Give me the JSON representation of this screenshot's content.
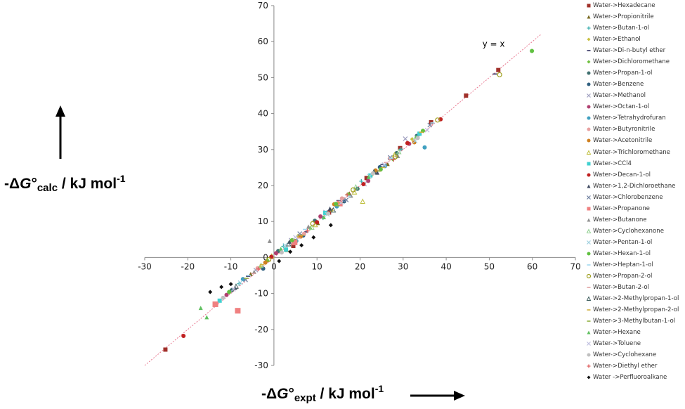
{
  "chart_data": {
    "type": "scatter",
    "xlim": [
      -30,
      70
    ],
    "ylim": [
      -30,
      70
    ],
    "x_ticks": [
      "-30",
      "-20",
      "-10",
      "0",
      "10",
      "20",
      "30",
      "40",
      "50",
      "60",
      "70"
    ],
    "y_ticks": [
      "-30",
      "-20",
      "-10",
      "0",
      "10",
      "20",
      "30",
      "40",
      "50",
      "60",
      "70"
    ],
    "grid": false,
    "legend_position": "right",
    "reference_line": {
      "label": "y = x",
      "color": "#e87890"
    },
    "xlabel": {
      "prefix": "-Δ",
      "symbol": "G",
      "degree": "°",
      "sub": "expt",
      "rest": " / kJ mol",
      "sup": "-1"
    },
    "ylabel": {
      "prefix": "-Δ",
      "symbol": "G",
      "degree": "°",
      "sub": "calc",
      "rest": " / kJ mol",
      "sup": "-1"
    },
    "series": [
      {
        "name": "Water->Hexadecane",
        "marker": "square",
        "color": "#a0302a",
        "x": [
          -25.2,
          4.5,
          12.8,
          21.5,
          29.3,
          36.5,
          44.6,
          52.1
        ],
        "y": [
          -25.6,
          3.2,
          12.5,
          22.1,
          30.4,
          37.6,
          45.0,
          52.1
        ]
      },
      {
        "name": "Water->Propionitrile",
        "marker": "triangle",
        "color": "#7a6a20",
        "x": [
          -5.4,
          3.0,
          10.2,
          17.5,
          26.4
        ],
        "y": [
          -4.6,
          2.1,
          9.6,
          17.8,
          26.0
        ]
      },
      {
        "name": "Water->Butan-1-ol",
        "marker": "plus",
        "color": "#40b0b0",
        "x": [
          -8.1,
          2.2,
          11.4,
          20.3,
          29.5
        ],
        "y": [
          -7.3,
          3.1,
          11.0,
          21.2,
          30.1
        ]
      },
      {
        "name": "Water->Ethanol",
        "marker": "diamond",
        "color": "#c8c040",
        "x": [
          -3.2,
          5.6,
          13.4,
          22.8,
          32.1
        ],
        "y": [
          -2.6,
          6.0,
          13.1,
          23.0,
          32.9
        ]
      },
      {
        "name": "Water->Di-n-butyl ether",
        "marker": "dash",
        "color": "#303060",
        "x": [
          -6.0,
          7.5,
          15.0,
          25.2,
          51.3
        ],
        "y": [
          -5.2,
          7.1,
          15.8,
          25.9,
          51.0
        ]
      },
      {
        "name": "Water->Dichloromethane",
        "marker": "diamond",
        "color": "#70c040",
        "x": [
          -1.5,
          8.4,
          17.2,
          27.6
        ],
        "y": [
          -0.8,
          8.1,
          17.6,
          27.3
        ]
      },
      {
        "name": "Water->Propan-1-ol",
        "marker": "circle",
        "color": "#407070",
        "x": [
          -9.8,
          1.0,
          9.5,
          19.4,
          28.5
        ],
        "y": [
          -9.1,
          1.8,
          10.2,
          19.1,
          29.0
        ]
      },
      {
        "name": "Water->Benzene",
        "marker": "circle",
        "color": "#306080",
        "x": [
          -2.5,
          6.8,
          16.3,
          24.6,
          33.2
        ],
        "y": [
          -3.1,
          6.1,
          15.6,
          25.1,
          33.8
        ]
      },
      {
        "name": "Water->Methanol",
        "marker": "cross",
        "color": "#a0a0c0",
        "x": [
          -4.2,
          4.0,
          12.0,
          21.0,
          30.5
        ],
        "y": [
          -3.5,
          4.8,
          12.6,
          20.4,
          33.0
        ]
      },
      {
        "name": "Water->Octan-1-ol",
        "marker": "circle",
        "color": "#b04070",
        "x": [
          -11.0,
          0.5,
          10.8,
          21.9,
          31.4
        ],
        "y": [
          -10.4,
          1.2,
          11.4,
          21.3,
          31.6
        ]
      },
      {
        "name": "Water->Tetrahydrofuran",
        "marker": "circle",
        "color": "#40a0c0",
        "x": [
          -7.2,
          5.2,
          14.6,
          25.8,
          35.0
        ],
        "y": [
          -6.0,
          4.6,
          14.2,
          25.4,
          30.6
        ]
      },
      {
        "name": "Water->Butyronitrile",
        "marker": "circle",
        "color": "#e8a0a0",
        "x": [
          -3.8,
          7.0,
          15.8,
          26.9
        ],
        "y": [
          -3.0,
          6.6,
          16.4,
          27.5
        ]
      },
      {
        "name": "Water->Acetonitrile",
        "marker": "circle",
        "color": "#d08020",
        "x": [
          -2.0,
          6.2,
          14.0,
          23.6,
          32.6
        ],
        "y": [
          -1.4,
          5.8,
          14.8,
          24.2,
          32.0
        ]
      },
      {
        "name": "Water->Trichloromethane",
        "marker": "triangle-open",
        "color": "#c0c040",
        "x": [
          -0.5,
          9.6,
          18.7,
          20.6,
          28.0
        ],
        "y": [
          0.4,
          9.1,
          18.2,
          15.6,
          28.6
        ]
      },
      {
        "name": "Water->CCl4",
        "marker": "square",
        "color": "#40d0d0",
        "x": [
          -12.6,
          2.8,
          11.9,
          22.4,
          33.8
        ],
        "y": [
          -12.0,
          2.2,
          12.4,
          22.8,
          34.4
        ]
      },
      {
        "name": "Water->Decan-1-ol",
        "marker": "circle",
        "color": "#c02020",
        "x": [
          -21.0,
          -0.6,
          10.0,
          20.8,
          31.0,
          38.7
        ],
        "y": [
          -21.8,
          0.2,
          9.8,
          20.4,
          31.8,
          38.4
        ]
      },
      {
        "name": "Water->1,2-Dichloroethane",
        "marker": "triangle",
        "color": "#404a60",
        "x": [
          -9.0,
          3.6,
          13.0,
          24.0
        ],
        "y": [
          -8.4,
          4.4,
          13.6,
          23.6
        ]
      },
      {
        "name": "Water->Chlorobenzene",
        "marker": "cross",
        "color": "#7080a0",
        "x": [
          -6.6,
          6.0,
          16.8,
          27.0,
          36.2
        ],
        "y": [
          -6.2,
          6.6,
          16.0,
          27.8,
          36.8
        ]
      },
      {
        "name": "Water->Propanone",
        "marker": "square",
        "color": "#f08080",
        "x": [
          -13.6,
          -8.4,
          4.8,
          15.3
        ],
        "y": [
          -13.0,
          -14.8,
          4.2,
          15.0
        ]
      },
      {
        "name": "Water->Butanone",
        "marker": "triangle",
        "color": "#909090",
        "x": [
          -4.6,
          -1.0,
          8.0,
          17.9,
          28.8
        ],
        "y": [
          -4.0,
          4.6,
          8.6,
          17.2,
          28.2
        ]
      },
      {
        "name": "Water->Cyclohexanone",
        "marker": "triangle-open",
        "color": "#90d090",
        "x": [
          -3.0,
          8.8,
          19.0,
          29.0
        ],
        "y": [
          -2.2,
          8.4,
          19.6,
          29.4
        ]
      },
      {
        "name": "Water->Pentan-1-ol",
        "marker": "cross",
        "color": "#a0d0e0",
        "x": [
          -7.8,
          2.6,
          12.4,
          22.2,
          32.8
        ],
        "y": [
          -7.0,
          3.4,
          12.0,
          22.6,
          32.4
        ]
      },
      {
        "name": "Water->Hexan-1-ol",
        "marker": "circle",
        "color": "#60c040",
        "x": [
          -10.4,
          4.2,
          14.4,
          24.8,
          34.6,
          59.9
        ],
        "y": [
          -9.6,
          4.8,
          14.9,
          24.5,
          35.2,
          57.4
        ]
      },
      {
        "name": "Water->Heptan-1-ol",
        "marker": "dash",
        "color": "#a0d8f0",
        "x": [
          -5.8,
          7.2,
          17.4,
          27.2,
          36.8
        ],
        "y": [
          -5.0,
          7.8,
          17.0,
          27.6,
          37.4
        ]
      },
      {
        "name": "Water->Propan-2-ol",
        "marker": "circle-open",
        "color": "#a0a020",
        "x": [
          -1.2,
          9.0,
          18.4,
          28.2,
          38.0,
          52.4
        ],
        "y": [
          -0.6,
          9.4,
          18.8,
          28.0,
          38.2,
          50.8
        ]
      },
      {
        "name": "Water->Butan-2-ol",
        "marker": "dash",
        "color": "#e0a0a0",
        "x": [
          -4.8,
          5.8,
          16.0,
          26.0
        ],
        "y": [
          -4.4,
          5.4,
          16.6,
          26.4
        ]
      },
      {
        "name": "Water->2-Methylpropan-1-ol",
        "marker": "triangle-open",
        "color": "#406060",
        "x": [
          -8.8,
          3.4,
          13.8,
          23.2
        ],
        "y": [
          -8.0,
          3.8,
          13.2,
          23.8
        ]
      },
      {
        "name": "Water->2-Methylpropan-2-ol",
        "marker": "dash",
        "color": "#d0b040",
        "x": [
          -2.8,
          6.6,
          15.4,
          25.4,
          34.2
        ],
        "y": [
          -2.0,
          6.2,
          15.2,
          25.0,
          34.8
        ]
      },
      {
        "name": "Water->3-Methylbutan-1-ol",
        "marker": "dash",
        "color": "#90b040",
        "x": [
          -6.4,
          4.6,
          14.8,
          24.4
        ],
        "y": [
          -5.8,
          5.0,
          14.4,
          24.0
        ]
      },
      {
        "name": "Water->Hexane",
        "marker": "triangle",
        "color": "#60c060",
        "x": [
          -17.0,
          -15.6,
          1.6,
          11.6,
          22.0,
          33.0
        ],
        "y": [
          -14.0,
          -16.6,
          2.4,
          11.2,
          22.4,
          33.6
        ]
      },
      {
        "name": "Water->Toluene",
        "marker": "cross",
        "color": "#c0c0e0",
        "x": [
          -9.4,
          5.0,
          15.6,
          25.6,
          35.6
        ],
        "y": [
          -8.8,
          5.6,
          15.2,
          25.8,
          35.4
        ]
      },
      {
        "name": "Water->Cyclohexane",
        "marker": "circle",
        "color": "#c0c0c0",
        "x": [
          -11.8,
          1.8,
          12.6,
          23.0,
          33.4
        ],
        "y": [
          -11.2,
          1.4,
          12.2,
          23.4,
          33.2
        ]
      },
      {
        "name": "Water->Diethyl ether",
        "marker": "plus",
        "color": "#e06060",
        "x": [
          -3.6,
          7.8,
          17.0,
          27.8
        ],
        "y": [
          -3.2,
          7.4,
          17.4,
          27.2
        ]
      },
      {
        "name": "Water ->Perfluoroalkane",
        "marker": "diamond",
        "color": "#101010",
        "x": [
          -14.8,
          -12.2,
          -10.0,
          1.2,
          3.8,
          6.4,
          9.2,
          13.2
        ],
        "y": [
          -9.6,
          -8.2,
          -7.4,
          -1.0,
          1.6,
          3.4,
          5.6,
          9.0
        ]
      }
    ]
  }
}
